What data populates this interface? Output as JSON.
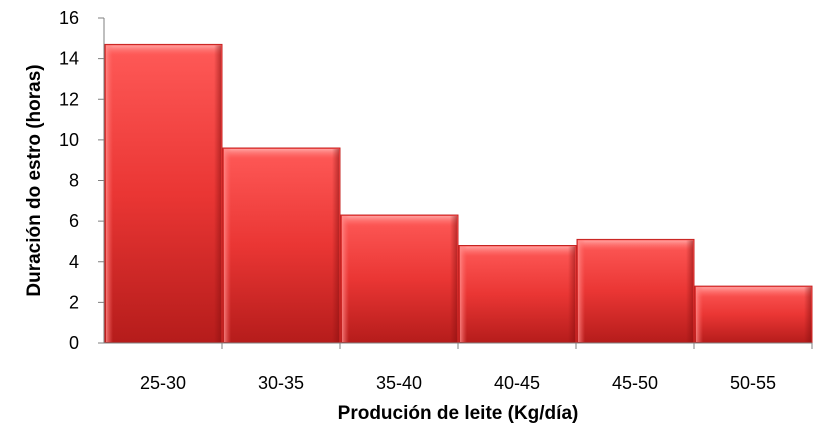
{
  "chart_data": {
    "type": "bar",
    "categories": [
      "25-30",
      "30-35",
      "35-40",
      "40-45",
      "45-50",
      "50-55"
    ],
    "values": [
      14.7,
      9.6,
      6.3,
      4.8,
      5.1,
      2.8
    ],
    "xlabel": "Produción de leite (Kg/día)",
    "ylabel": "Duración do estro (horas)",
    "ylim": [
      0,
      16
    ],
    "yticks": [
      0,
      2,
      4,
      6,
      8,
      10,
      12,
      14,
      16
    ],
    "grid": false,
    "legend": "none",
    "bar_color": "#e8302f"
  }
}
